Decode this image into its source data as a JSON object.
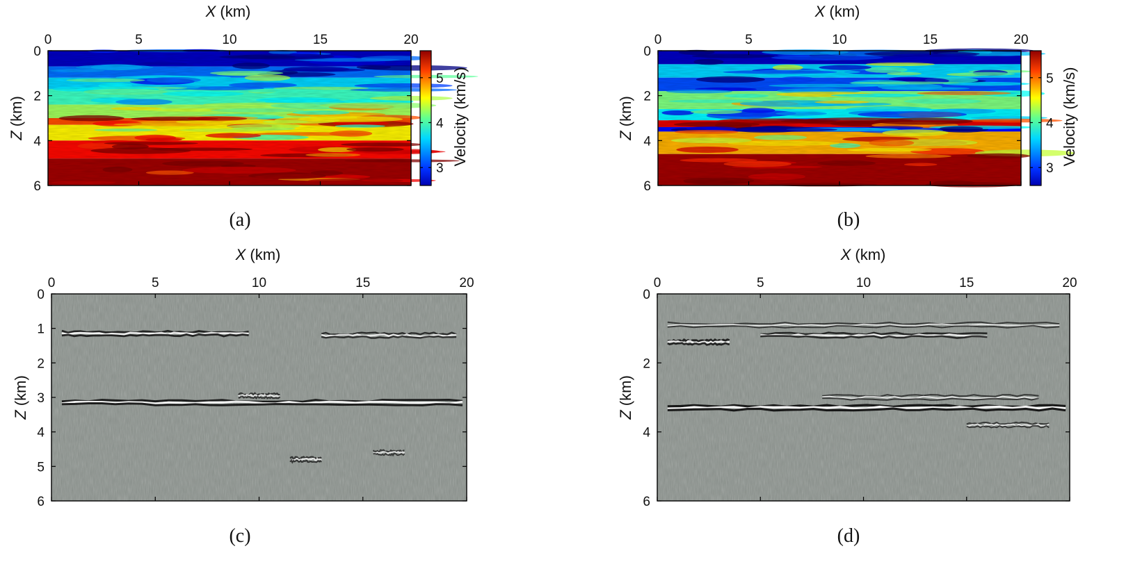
{
  "chart_data": [
    {
      "type": "heatmap",
      "panel": "a",
      "caption": "(a)",
      "xlabel": "X (km)",
      "xlabel_var": "X",
      "xlabel_unit": "(km)",
      "ylabel": "Z (km)",
      "ylabel_var": "Z",
      "ylabel_unit": "(km)",
      "xlim": [
        0,
        20
      ],
      "ylim": [
        0,
        6
      ],
      "xticks": [
        "0",
        "5",
        "10",
        "15",
        "20"
      ],
      "yticks": [
        "0",
        "2",
        "4",
        "6"
      ],
      "colorbar": {
        "label": "Velocity (km/s)",
        "ticks": [
          "3",
          "4",
          "5"
        ],
        "range": [
          2.6,
          5.6
        ]
      },
      "colormap": "jet",
      "layers": [
        {
          "z0": 0.0,
          "z1": 0.7,
          "v": 2.8
        },
        {
          "z0": 0.7,
          "z1": 1.2,
          "v": 3.3
        },
        {
          "z0": 1.2,
          "z1": 1.7,
          "v": 3.6
        },
        {
          "z0": 1.7,
          "z1": 2.4,
          "v": 3.9
        },
        {
          "z0": 2.4,
          "z1": 3.0,
          "v": 4.2
        },
        {
          "z0": 3.0,
          "z1": 3.3,
          "v": 5.0
        },
        {
          "z0": 3.3,
          "z1": 4.0,
          "v": 4.5
        },
        {
          "z0": 4.0,
          "z1": 4.8,
          "v": 5.2
        },
        {
          "z0": 4.8,
          "z1": 6.0,
          "v": 5.5
        }
      ]
    },
    {
      "type": "heatmap",
      "panel": "b",
      "caption": "(b)",
      "xlabel": "X (km)",
      "xlabel_var": "X",
      "xlabel_unit": "(km)",
      "ylabel": "Z (km)",
      "ylabel_var": "Z",
      "ylabel_unit": "(km)",
      "xlim": [
        0,
        20
      ],
      "ylim": [
        0,
        6
      ],
      "xticks": [
        "0",
        "5",
        "10",
        "15",
        "20"
      ],
      "yticks": [
        "0",
        "2",
        "4",
        "6"
      ],
      "colorbar": {
        "label": "Velocity (km/s)",
        "ticks": [
          "3",
          "4",
          "5"
        ],
        "range": [
          2.6,
          5.6
        ]
      },
      "colormap": "jet",
      "layers": [
        {
          "z0": 0.0,
          "z1": 0.6,
          "v": 2.8
        },
        {
          "z0": 0.6,
          "z1": 1.2,
          "v": 3.6
        },
        {
          "z0": 1.2,
          "z1": 1.8,
          "v": 3.2
        },
        {
          "z0": 1.8,
          "z1": 2.6,
          "v": 4.1
        },
        {
          "z0": 2.6,
          "z1": 3.1,
          "v": 3.7
        },
        {
          "z0": 3.1,
          "z1": 3.4,
          "v": 5.3
        },
        {
          "z0": 3.4,
          "z1": 3.6,
          "v": 3.0
        },
        {
          "z0": 3.6,
          "z1": 4.6,
          "v": 4.7
        },
        {
          "z0": 4.6,
          "z1": 6.0,
          "v": 5.5
        }
      ]
    },
    {
      "type": "heatmap",
      "panel": "c",
      "caption": "(c)",
      "xlabel": "X (km)",
      "xlabel_var": "X",
      "xlabel_unit": "(km)",
      "ylabel": "Z (km)",
      "ylabel_var": "Z",
      "ylabel_unit": "(km)",
      "xlim": [
        0,
        20
      ],
      "ylim": [
        0,
        6
      ],
      "xticks": [
        "0",
        "5",
        "10",
        "15",
        "20"
      ],
      "yticks": [
        "0",
        "1",
        "2",
        "3",
        "4",
        "5",
        "6"
      ],
      "colormap": "gray",
      "reflectors": [
        {
          "x0": 0.5,
          "x1": 9.5,
          "z": 1.15,
          "amp": 0.8
        },
        {
          "x0": 13.0,
          "x1": 19.5,
          "z": 1.2,
          "amp": 0.6
        },
        {
          "x0": 0.5,
          "x1": 19.8,
          "z": 3.15,
          "amp": 0.9
        },
        {
          "x0": 9.0,
          "x1": 11.0,
          "z": 2.95,
          "amp": 0.5
        },
        {
          "x0": 11.5,
          "x1": 13.0,
          "z": 4.8,
          "amp": 0.5
        },
        {
          "x0": 15.5,
          "x1": 17.0,
          "z": 4.6,
          "amp": 0.4
        }
      ]
    },
    {
      "type": "heatmap",
      "panel": "d",
      "caption": "(d)",
      "xlabel": "X (km)",
      "xlabel_var": "X",
      "xlabel_unit": "(km)",
      "ylabel": "Z (km)",
      "ylabel_var": "Z",
      "ylabel_unit": "(km)",
      "xlim": [
        0,
        20
      ],
      "ylim": [
        0,
        6
      ],
      "xticks": [
        "0",
        "5",
        "10",
        "15",
        "20"
      ],
      "yticks": [
        "0",
        "2",
        "4",
        "6"
      ],
      "colormap": "gray",
      "reflectors": [
        {
          "x0": 0.5,
          "x1": 19.5,
          "z": 0.9,
          "amp": 0.4
        },
        {
          "x0": 0.5,
          "x1": 3.5,
          "z": 1.4,
          "amp": 0.8
        },
        {
          "x0": 5.0,
          "x1": 16.0,
          "z": 1.2,
          "amp": 0.7
        },
        {
          "x0": 0.5,
          "x1": 19.8,
          "z": 3.3,
          "amp": 1.0
        },
        {
          "x0": 8.0,
          "x1": 18.5,
          "z": 3.0,
          "amp": 0.4
        },
        {
          "x0": 15.0,
          "x1": 19.0,
          "z": 3.8,
          "amp": 0.4
        }
      ]
    }
  ]
}
